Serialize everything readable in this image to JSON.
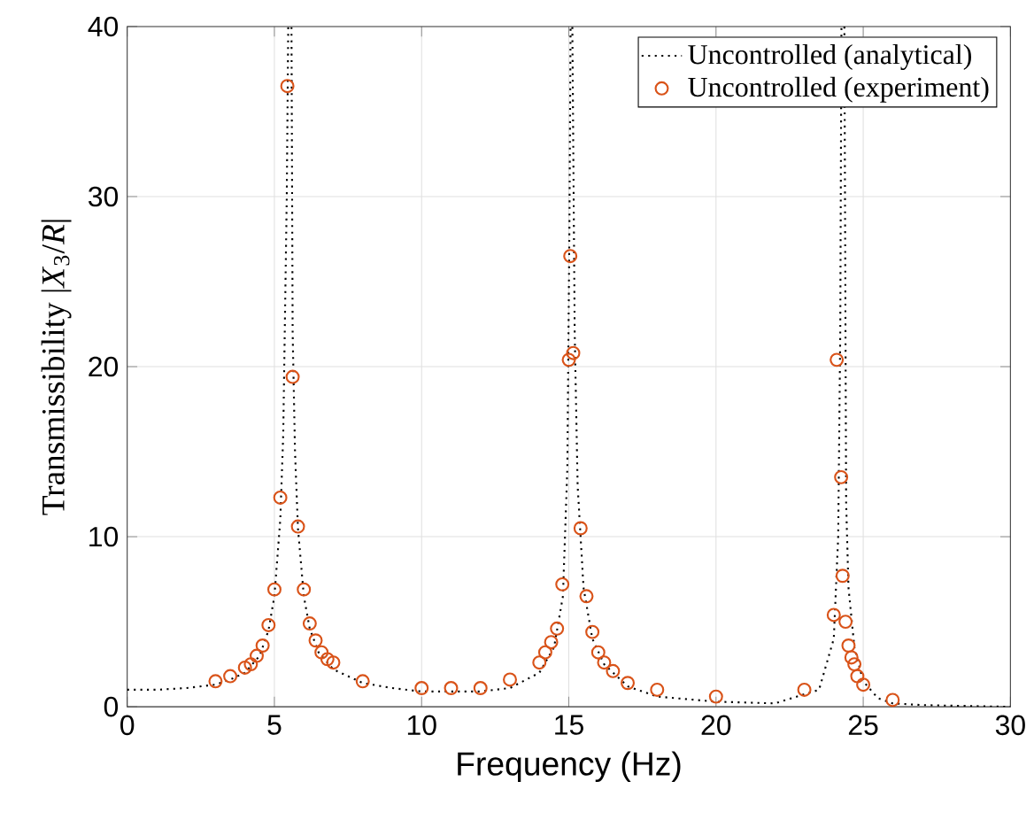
{
  "chart_data": {
    "type": "line",
    "xlabel": "Frequency (Hz)",
    "ylabel": "Transmissibility |*X*$_{3}$/*R*|",
    "xlim": [
      0,
      30
    ],
    "ylim": [
      0,
      40
    ],
    "xticks": [
      0,
      5,
      10,
      15,
      20,
      25,
      30
    ],
    "yticks": [
      0,
      10,
      20,
      30,
      40
    ],
    "grid": true,
    "legend": "top right",
    "series": [
      {
        "name": "Uncontrolled (analytical)",
        "color": "#000000",
        "line_style": "dotted",
        "marker": "none",
        "x": [
          0,
          1,
          2,
          3,
          3.5,
          4,
          4.5,
          4.8,
          5.0,
          5.2,
          5.3,
          5.42,
          5.47,
          5.58,
          5.62,
          5.7,
          5.8,
          6.0,
          6.2,
          6.5,
          7,
          8,
          9,
          10,
          12,
          13,
          14,
          14.5,
          14.8,
          14.95,
          15.02,
          15.06,
          15.12,
          15.2,
          15.3,
          15.5,
          15.8,
          16.2,
          17,
          18,
          20,
          22,
          23.5,
          24.0,
          24.15,
          24.22,
          24.26,
          24.36,
          24.42,
          24.5,
          24.7,
          25,
          25.5,
          26,
          27,
          30
        ],
        "values": [
          1.0,
          1.0,
          1.1,
          1.3,
          1.6,
          2.0,
          3.0,
          4.5,
          6.5,
          11,
          16,
          30,
          40,
          40,
          22,
          15,
          10.5,
          6.5,
          4.6,
          3.2,
          2.2,
          1.4,
          1.1,
          0.9,
          0.9,
          1.1,
          2.0,
          3.5,
          6.5,
          14,
          28,
          40,
          40,
          22,
          13,
          7,
          4.0,
          2.5,
          1.2,
          0.6,
          0.3,
          0.2,
          1.0,
          4,
          10,
          22,
          40,
          40,
          12,
          7,
          3.5,
          1.5,
          0.5,
          0.2,
          0.1,
          0
        ]
      },
      {
        "name": "Uncontrolled (experiment)",
        "type": "scatter",
        "color": "#d95319",
        "marker": "circle",
        "x": [
          3.0,
          3.5,
          4.0,
          4.2,
          4.4,
          4.6,
          4.8,
          5.0,
          5.2,
          5.44,
          5.62,
          5.8,
          6.0,
          6.2,
          6.4,
          6.6,
          6.8,
          7.0,
          8.0,
          10.0,
          11.0,
          12.0,
          13.0,
          14.0,
          14.2,
          14.4,
          14.6,
          14.78,
          15.0,
          15.05,
          15.15,
          15.4,
          15.6,
          15.8,
          16.0,
          16.2,
          16.5,
          17.0,
          18.0,
          20.0,
          23.0,
          24.0,
          24.1,
          24.25,
          24.3,
          24.4,
          24.5,
          24.6,
          24.7,
          24.8,
          25.0,
          26.0
        ],
        "values": [
          1.5,
          1.8,
          2.3,
          2.5,
          3.0,
          3.6,
          4.8,
          6.9,
          12.3,
          36.5,
          19.4,
          10.6,
          6.9,
          4.9,
          3.9,
          3.2,
          2.8,
          2.6,
          1.5,
          1.1,
          1.1,
          1.1,
          1.6,
          2.6,
          3.2,
          3.8,
          4.6,
          7.2,
          20.4,
          26.5,
          20.8,
          10.5,
          6.5,
          4.4,
          3.2,
          2.6,
          2.1,
          1.4,
          1.0,
          0.6,
          1.0,
          5.4,
          20.4,
          13.5,
          7.7,
          5.0,
          3.6,
          2.9,
          2.5,
          1.8,
          1.3,
          0.4
        ]
      }
    ]
  }
}
